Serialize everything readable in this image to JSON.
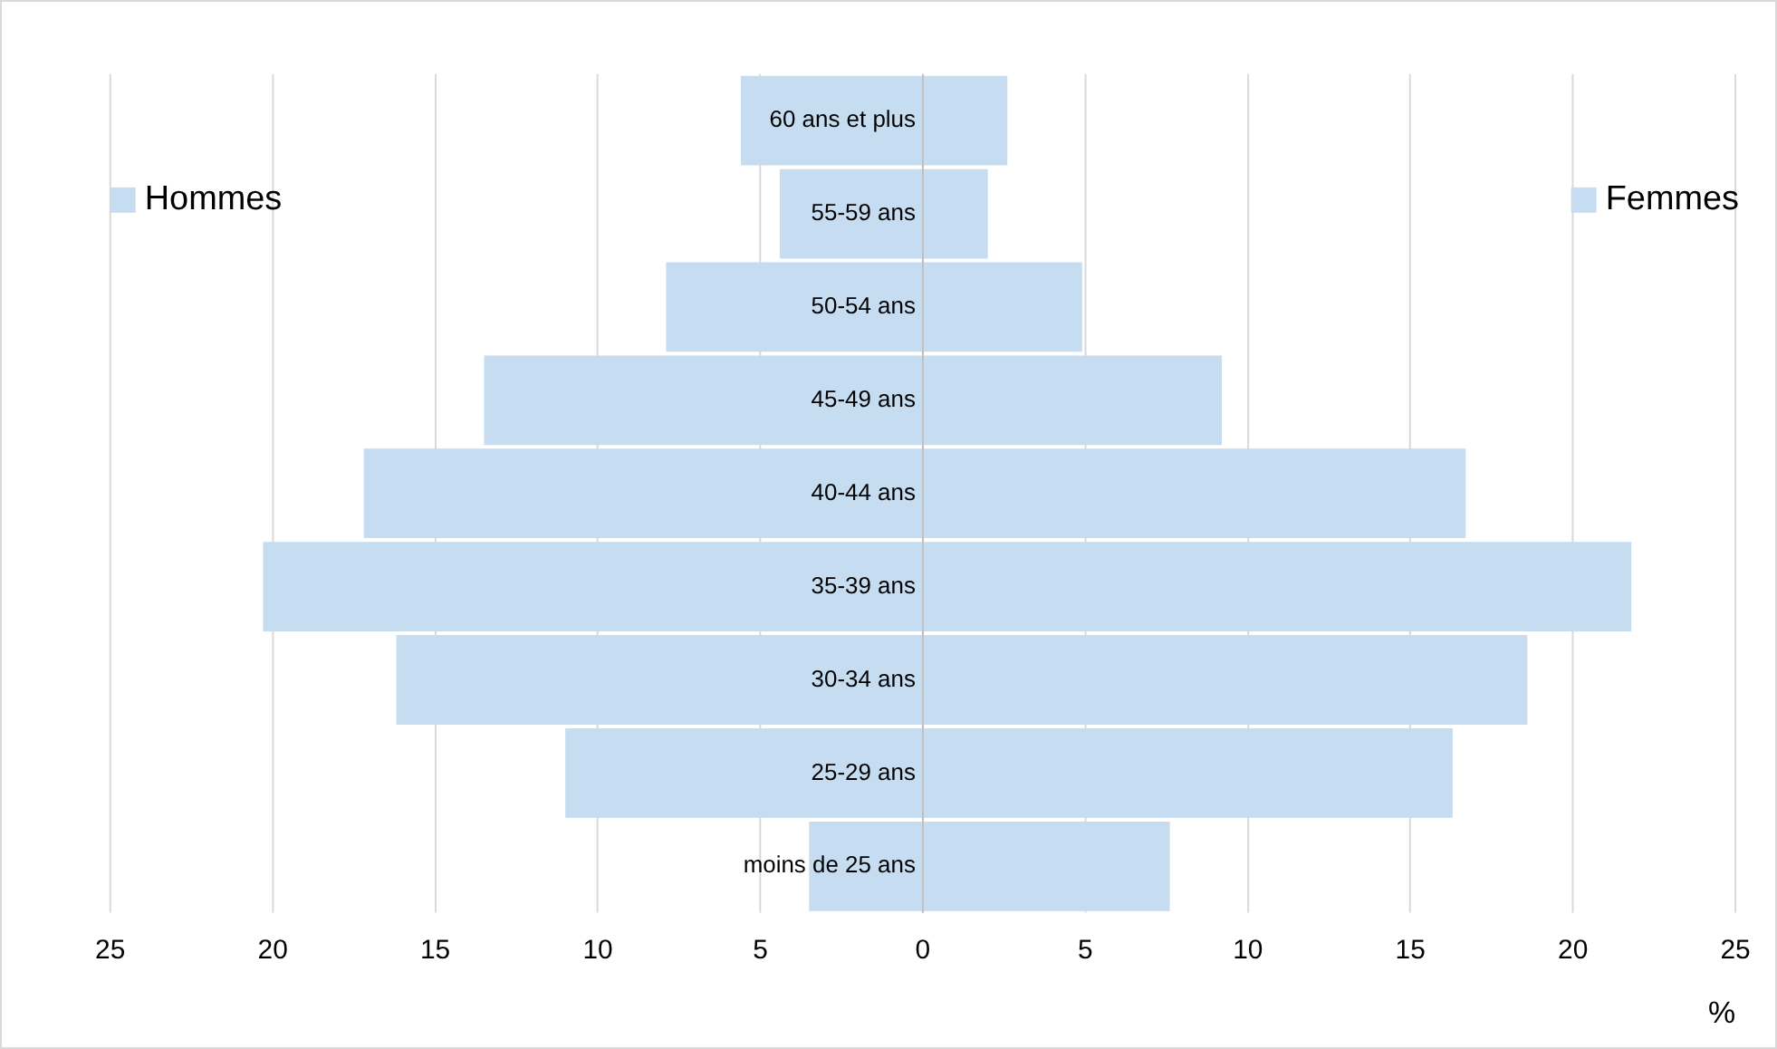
{
  "chart_data": {
    "type": "bar",
    "orientation": "horizontal",
    "stacked": true,
    "categories": [
      "60 ans et plus",
      "55-59 ans",
      "50-54 ans",
      "45-49 ans",
      "40-44 ans",
      "35-39 ans",
      "30-34 ans",
      "25-29 ans",
      "moins de 25 ans"
    ],
    "series": [
      {
        "name": "Hommes",
        "color": "#c5dcf1",
        "values": [
          -5.6,
          -4.4,
          -7.9,
          -13.5,
          -17.2,
          -20.3,
          -16.2,
          -11.0,
          -3.5
        ]
      },
      {
        "name": "Femmes",
        "color": "#c5dcf1",
        "values": [
          2.6,
          2.0,
          4.9,
          9.2,
          16.7,
          21.8,
          18.6,
          16.3,
          7.6
        ]
      }
    ],
    "xlabel": "%",
    "xlim": [
      -25,
      25
    ],
    "xticks": [
      {
        "value": -25,
        "label": "25"
      },
      {
        "value": -20,
        "label": "20"
      },
      {
        "value": -15,
        "label": "15"
      },
      {
        "value": -10,
        "label": "10"
      },
      {
        "value": -5,
        "label": "5"
      },
      0,
      5,
      10,
      15,
      20,
      25
    ],
    "grid": "x",
    "legend": "top"
  }
}
